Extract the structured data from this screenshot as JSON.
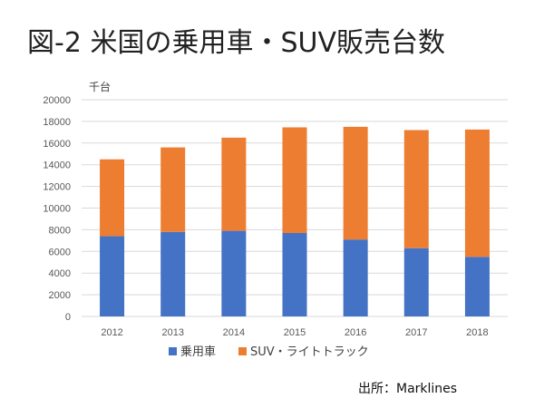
{
  "title": "図-2 米国の乗用車・SUV販売台数",
  "source": "出所：Marklines",
  "colors": {
    "passenger": "#4472C4",
    "suv": "#ED7D31",
    "grid": "#D9D9D9"
  },
  "chart_data": {
    "type": "bar",
    "stacked": true,
    "title": "図-2 米国の乗用車・SUV販売台数",
    "unit_label": "千台",
    "categories": [
      "2012",
      "2013",
      "2014",
      "2015",
      "2016",
      "2017",
      "2018"
    ],
    "series": [
      {
        "name": "乗用車",
        "values": [
          7400,
          7800,
          7900,
          7700,
          7100,
          6300,
          5500
        ]
      },
      {
        "name": "SUV・ライトトラック",
        "values": [
          7100,
          7800,
          8600,
          9750,
          10400,
          10900,
          11750
        ]
      }
    ],
    "ylim": [
      0,
      20000
    ],
    "yticks": [
      0,
      2000,
      4000,
      6000,
      8000,
      10000,
      12000,
      14000,
      16000,
      18000,
      20000
    ],
    "grid": true,
    "legend_position": "bottom"
  }
}
